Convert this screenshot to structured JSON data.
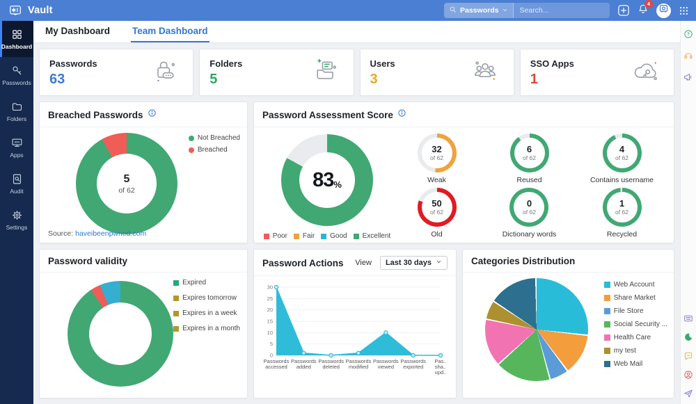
{
  "topbar": {
    "brand": "Vault",
    "search_scope": "Passwords",
    "search_placeholder": "Search...",
    "notification_count": "4"
  },
  "sidebar": {
    "items": [
      {
        "label": "Dashboard",
        "icon": "dashboard-icon",
        "active": true
      },
      {
        "label": "Passwords",
        "icon": "key-icon",
        "active": false
      },
      {
        "label": "Folders",
        "icon": "folder-icon",
        "active": false
      },
      {
        "label": "Apps",
        "icon": "apps-icon",
        "active": false
      },
      {
        "label": "Audit",
        "icon": "audit-icon",
        "active": false
      },
      {
        "label": "Settings",
        "icon": "gear-icon",
        "active": false
      }
    ]
  },
  "tabs": [
    {
      "label": "My Dashboard",
      "active": false
    },
    {
      "label": "Team Dashboard",
      "active": true
    }
  ],
  "stat_cards": [
    {
      "label": "Passwords",
      "value": "63",
      "value_color": "#3a7ad9",
      "icon": "lock-icon"
    },
    {
      "label": "Folders",
      "value": "5",
      "value_color": "#2aa865",
      "icon": "folder-tray-icon"
    },
    {
      "label": "Users",
      "value": "3",
      "value_color": "#e9a825",
      "icon": "users-icon"
    },
    {
      "label": "SSO Apps",
      "value": "1",
      "value_color": "#e0453a",
      "icon": "cloud-key-icon"
    }
  ],
  "panels": {
    "breached": {
      "title": "Breached Passwords",
      "center_value": "5",
      "center_caption": "of 62",
      "source_label": "Source:",
      "source_link": "haveibeenpwned.com"
    },
    "assessment": {
      "title": "Password Assessment Score",
      "score": "83",
      "score_unit": "%"
    },
    "validity": {
      "title": "Password validity"
    },
    "actions": {
      "title": "Password Actions",
      "view_label": "View",
      "view_value": "Last 30 days"
    },
    "categories": {
      "title": "Categories Distribution"
    }
  },
  "chart_data": [
    {
      "id": "breached",
      "type": "donut",
      "title": "Breached Passwords",
      "labels": [
        "Not Breached",
        "Breached"
      ],
      "values": [
        57,
        5
      ],
      "total": 62,
      "colors": [
        "#41a873",
        "#f05c56"
      ],
      "center_text": "5 of 62",
      "legend_position": "top-right"
    },
    {
      "id": "assessment_score",
      "type": "donut",
      "title": "Password Assessment Score",
      "percent": 83,
      "color": "#41a873",
      "track": "#e9ebee",
      "legend": [
        {
          "label": "Poor",
          "color": "#f05c56"
        },
        {
          "label": "Fair",
          "color": "#f0a23c"
        },
        {
          "label": "Good",
          "color": "#29b8d8"
        },
        {
          "label": "Excellent",
          "color": "#41a873"
        }
      ]
    },
    {
      "id": "assessment_minis",
      "type": "donut-grid",
      "total": 62,
      "items": [
        {
          "label": "Weak",
          "value": 32,
          "caption": "of 62",
          "arc_percent": 51.6,
          "color": "#f0a23c"
        },
        {
          "label": "Reused",
          "value": 6,
          "caption": "of 62",
          "arc_percent": 90.3,
          "color": "#41a873"
        },
        {
          "label": "Contains username",
          "value": 4,
          "caption": "of 62",
          "arc_percent": 93.5,
          "color": "#41a873"
        },
        {
          "label": "Old",
          "value": 50,
          "caption": "of 62",
          "arc_percent": 80.6,
          "color": "#e01b22"
        },
        {
          "label": "Dictionary words",
          "value": 0,
          "caption": "of 62",
          "arc_percent": 100,
          "color": "#41a873"
        },
        {
          "label": "Recycled",
          "value": 1,
          "caption": "of 62",
          "arc_percent": 98.4,
          "color": "#41a873"
        }
      ]
    },
    {
      "id": "validity",
      "type": "donut",
      "title": "Password validity",
      "segments": [
        {
          "percent": 90.6,
          "color": "#41a873"
        },
        {
          "percent": 3.0,
          "color": "#f05c56"
        },
        {
          "percent": 6.4,
          "color": "#35aed0"
        }
      ],
      "legend": [
        {
          "label": "Expired",
          "color": "#2aa876"
        },
        {
          "label": "Expires tomorrow",
          "color": "#b0982f"
        },
        {
          "label": "Expires in a week",
          "color": "#b0982f"
        },
        {
          "label": "Expires in a month",
          "color": "#b0982f"
        }
      ]
    },
    {
      "id": "actions",
      "type": "area",
      "title": "Password Actions",
      "categories": [
        "Passwords accessed",
        "Passwords added",
        "Passwords deleted",
        "Passwords modified",
        "Passwords viewed",
        "Passwords exported",
        "Pas.. sha.. upd.."
      ],
      "category_lines": [
        [
          "Passwords",
          "accessed"
        ],
        [
          "Passwords",
          "added"
        ],
        [
          "Passwords",
          "deleted"
        ],
        [
          "Passwords",
          "modified"
        ],
        [
          "Passwords",
          "viewed"
        ],
        [
          "Passwords",
          "exported"
        ],
        [
          "Pas..",
          "sha..",
          "upd.."
        ]
      ],
      "values": [
        30,
        1,
        0,
        1,
        10,
        0,
        0
      ],
      "ylim": [
        0,
        30
      ],
      "yticks": [
        0,
        5,
        10,
        15,
        20,
        25,
        30
      ],
      "color": "#2ebcd9"
    },
    {
      "id": "categories",
      "type": "pie",
      "title": "Categories Distribution",
      "labels": [
        "Web Account",
        "Share Market",
        "File Store",
        "Social Security ...",
        "Health Care",
        "my test",
        "Web Mail"
      ],
      "values_percent": [
        27,
        13,
        6,
        17.5,
        15,
        6,
        15.5
      ],
      "colors": [
        "#29bcd8",
        "#f49d3d",
        "#5a9bd8",
        "#57b65c",
        "#f173b2",
        "#ad9030",
        "#2d6f8e"
      ],
      "legend_position": "right"
    }
  ],
  "right_rail": {
    "top": [
      {
        "icon": "help-icon",
        "color": "#3aa76d"
      },
      {
        "icon": "headset-icon",
        "color": "#e8a33c"
      },
      {
        "icon": "megaphone-icon",
        "color": "#7b6fd6"
      }
    ],
    "bottom": [
      {
        "icon": "keyboard-icon",
        "color": "#7b6fd6"
      },
      {
        "icon": "moon-icon",
        "color": "#3aa76d"
      },
      {
        "icon": "chat-icon",
        "color": "#d8b83a"
      },
      {
        "icon": "user-icon",
        "color": "#e05a4e"
      },
      {
        "icon": "send-icon",
        "color": "#7b6fd6"
      }
    ]
  }
}
